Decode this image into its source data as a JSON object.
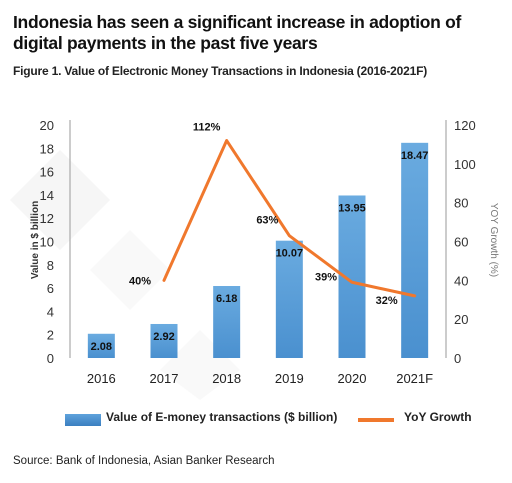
{
  "headline": "Indonesia has seen a significant increase in adoption of digital payments in the past five years",
  "subtitle": "Figure 1. Value of Electronic Money Transactions in Indonesia (2016-2021F)",
  "source": "Source: Bank of Indonesia, Asian Banker Research",
  "colors": {
    "bar": "#4a90cf",
    "line": "#f0782d",
    "axis": "#999999"
  },
  "chart_data": {
    "type": "bar",
    "categories": [
      "2016",
      "2017",
      "2018",
      "2019",
      "2020",
      "2021F"
    ],
    "series": [
      {
        "name": "Value of E-money transactions ($ billion)",
        "type": "bar",
        "axis": "left",
        "values": [
          2.08,
          2.92,
          6.18,
          10.07,
          13.95,
          18.47
        ],
        "labels": [
          "2.08",
          "2.92",
          "6.18",
          "10.07",
          "13.95",
          "18.47"
        ]
      },
      {
        "name": "YoY Growth",
        "type": "line",
        "axis": "right",
        "values": [
          null,
          40,
          112,
          63,
          39,
          32
        ],
        "labels": [
          "",
          "40%",
          "112%",
          "63%",
          "39%",
          "32%"
        ]
      }
    ],
    "ylabel": "Value in $ billion",
    "y2label": "YOY Growth (%)",
    "ylim": [
      0,
      20
    ],
    "y2lim": [
      0,
      120
    ],
    "yticks": [
      0,
      2,
      4,
      6,
      8,
      10,
      12,
      14,
      16,
      18,
      20
    ],
    "y2ticks": [
      0,
      20,
      40,
      60,
      80,
      100,
      120
    ],
    "legend_position": "bottom",
    "grid": false
  }
}
